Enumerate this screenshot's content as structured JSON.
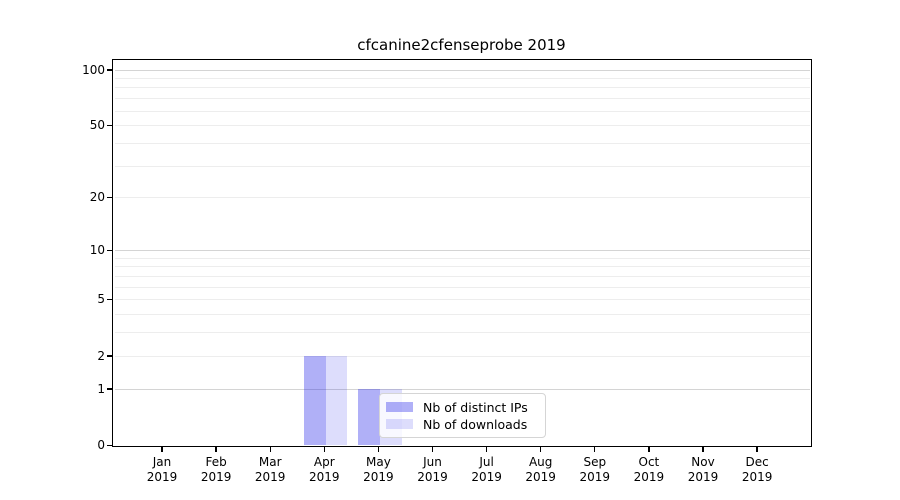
{
  "chart_data": {
    "type": "bar",
    "title": "cfcanine2cfenseprobe 2019",
    "xlabel": "",
    "ylabel": "",
    "categories": [
      "Jan",
      "Feb",
      "Mar",
      "Apr",
      "May",
      "Jun",
      "Jul",
      "Aug",
      "Sep",
      "Oct",
      "Nov",
      "Dec"
    ],
    "category_year": "2019",
    "series": [
      {
        "name": "Nb of distinct IPs",
        "color": "rgba(28,28,232,0.35)",
        "values": [
          0,
          0,
          0,
          2,
          1,
          0,
          0,
          0,
          0,
          0,
          0,
          0
        ]
      },
      {
        "name": "Nb of downloads",
        "color": "rgba(28,28,232,0.15)",
        "values": [
          0,
          0,
          0,
          2,
          1,
          0,
          0,
          0,
          0,
          0,
          0,
          0
        ]
      }
    ],
    "yscale": "log(1+y)",
    "ylim": [
      0,
      113
    ],
    "yticks": [
      0,
      1,
      2,
      5,
      10,
      20,
      50,
      100
    ],
    "grid": {
      "major_values": [
        1,
        10,
        100
      ],
      "minor_values": [
        2,
        3,
        4,
        5,
        6,
        7,
        8,
        9,
        20,
        30,
        40,
        50,
        60,
        70,
        80,
        90
      ],
      "major_color": "#d4d4d4",
      "minor_color": "#ededed"
    },
    "legend_position": "lower center",
    "axis_color": "#000000"
  }
}
